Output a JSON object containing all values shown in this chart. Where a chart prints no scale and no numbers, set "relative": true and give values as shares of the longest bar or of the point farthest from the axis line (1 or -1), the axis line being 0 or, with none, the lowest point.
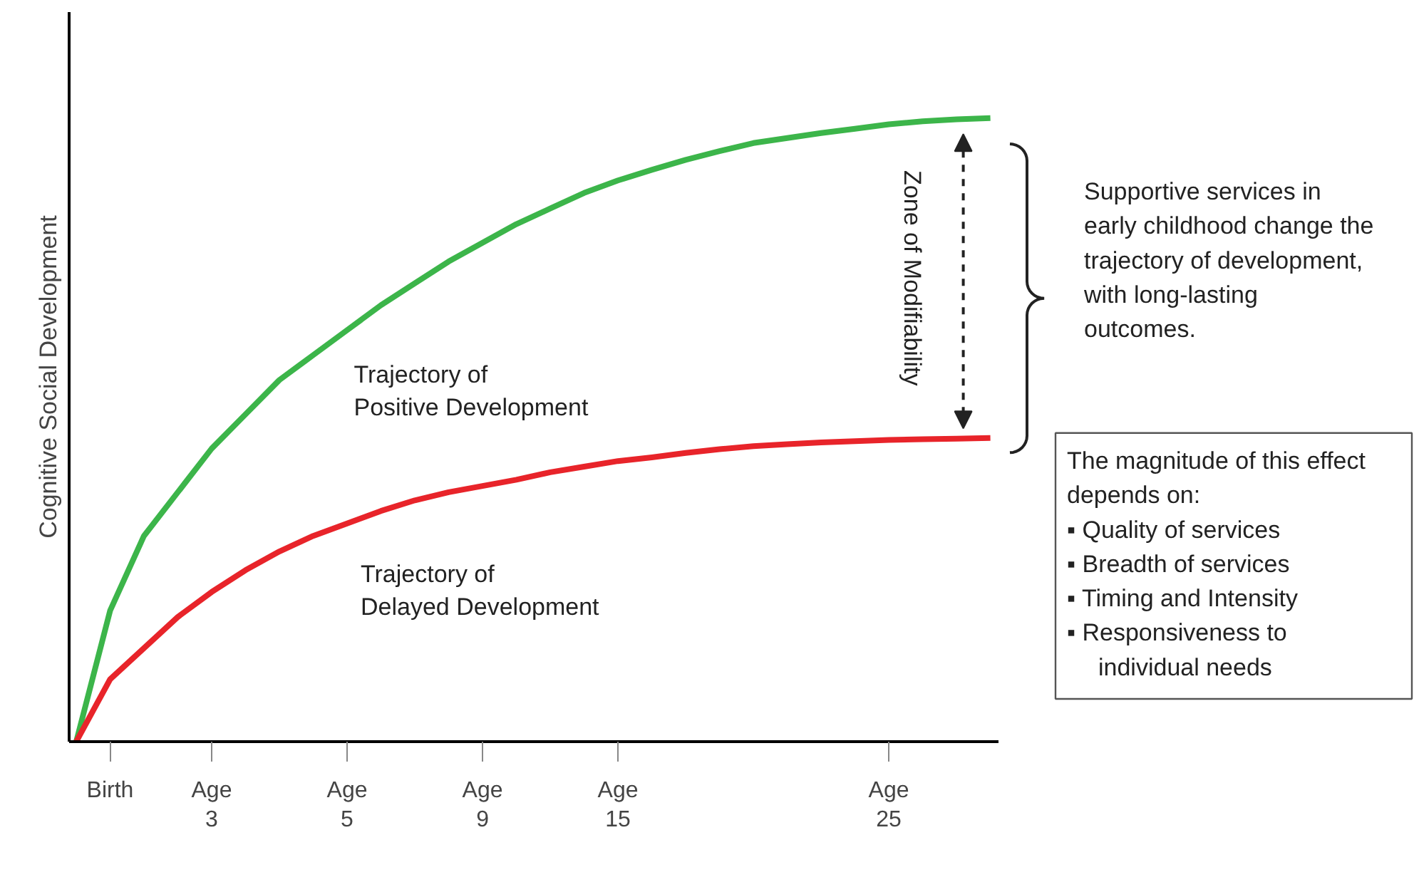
{
  "chart_data": {
    "type": "line",
    "relative": true,
    "ylabel": "Cognitive Social Development",
    "categories": [
      null,
      "Birth",
      null,
      null,
      "Age\n3",
      null,
      null,
      null,
      "Age\n5",
      null,
      null,
      null,
      "Age\n9",
      null,
      null,
      null,
      "Age\n15",
      null,
      null,
      null,
      null,
      null,
      null,
      null,
      "Age\n25",
      null,
      null,
      null
    ],
    "series": [
      {
        "name": "Trajectory of\nPositive Development",
        "color": "#3cb54a",
        "values": [
          0,
          0.21,
          0.33,
          0.4,
          0.47,
          0.525,
          0.58,
          0.62,
          0.66,
          0.7,
          0.735,
          0.77,
          0.8,
          0.83,
          0.855,
          0.88,
          0.9,
          0.917,
          0.933,
          0.947,
          0.96,
          0.968,
          0.976,
          0.983,
          0.99,
          0.995,
          0.998,
          1
        ]
      },
      {
        "name": "Trajectory of\nDelayed Development",
        "color": "#e8242a",
        "values": [
          0,
          0.1,
          0.15,
          0.2,
          0.24,
          0.275,
          0.305,
          0.33,
          0.35,
          0.37,
          0.387,
          0.4,
          0.41,
          0.42,
          0.432,
          0.441,
          0.45,
          0.456,
          0.463,
          0.469,
          0.474,
          0.477,
          0.48,
          0.482,
          0.484,
          0.485,
          0.486,
          0.487
        ]
      }
    ],
    "annotations": [
      "Zone of Modifiability",
      "Supportive services in\nearly childhood change the\ntrajectory of development,\nwith long-lasting\noutcomes.",
      "The magnitude of this effect\ndepends on:\n▪ Quality of services\n▪ Breadth of services\n▪ Timing and Intensity\n▪ Responsiveness to\nindividual needs"
    ],
    "line_style": "solid",
    "grid": false
  }
}
